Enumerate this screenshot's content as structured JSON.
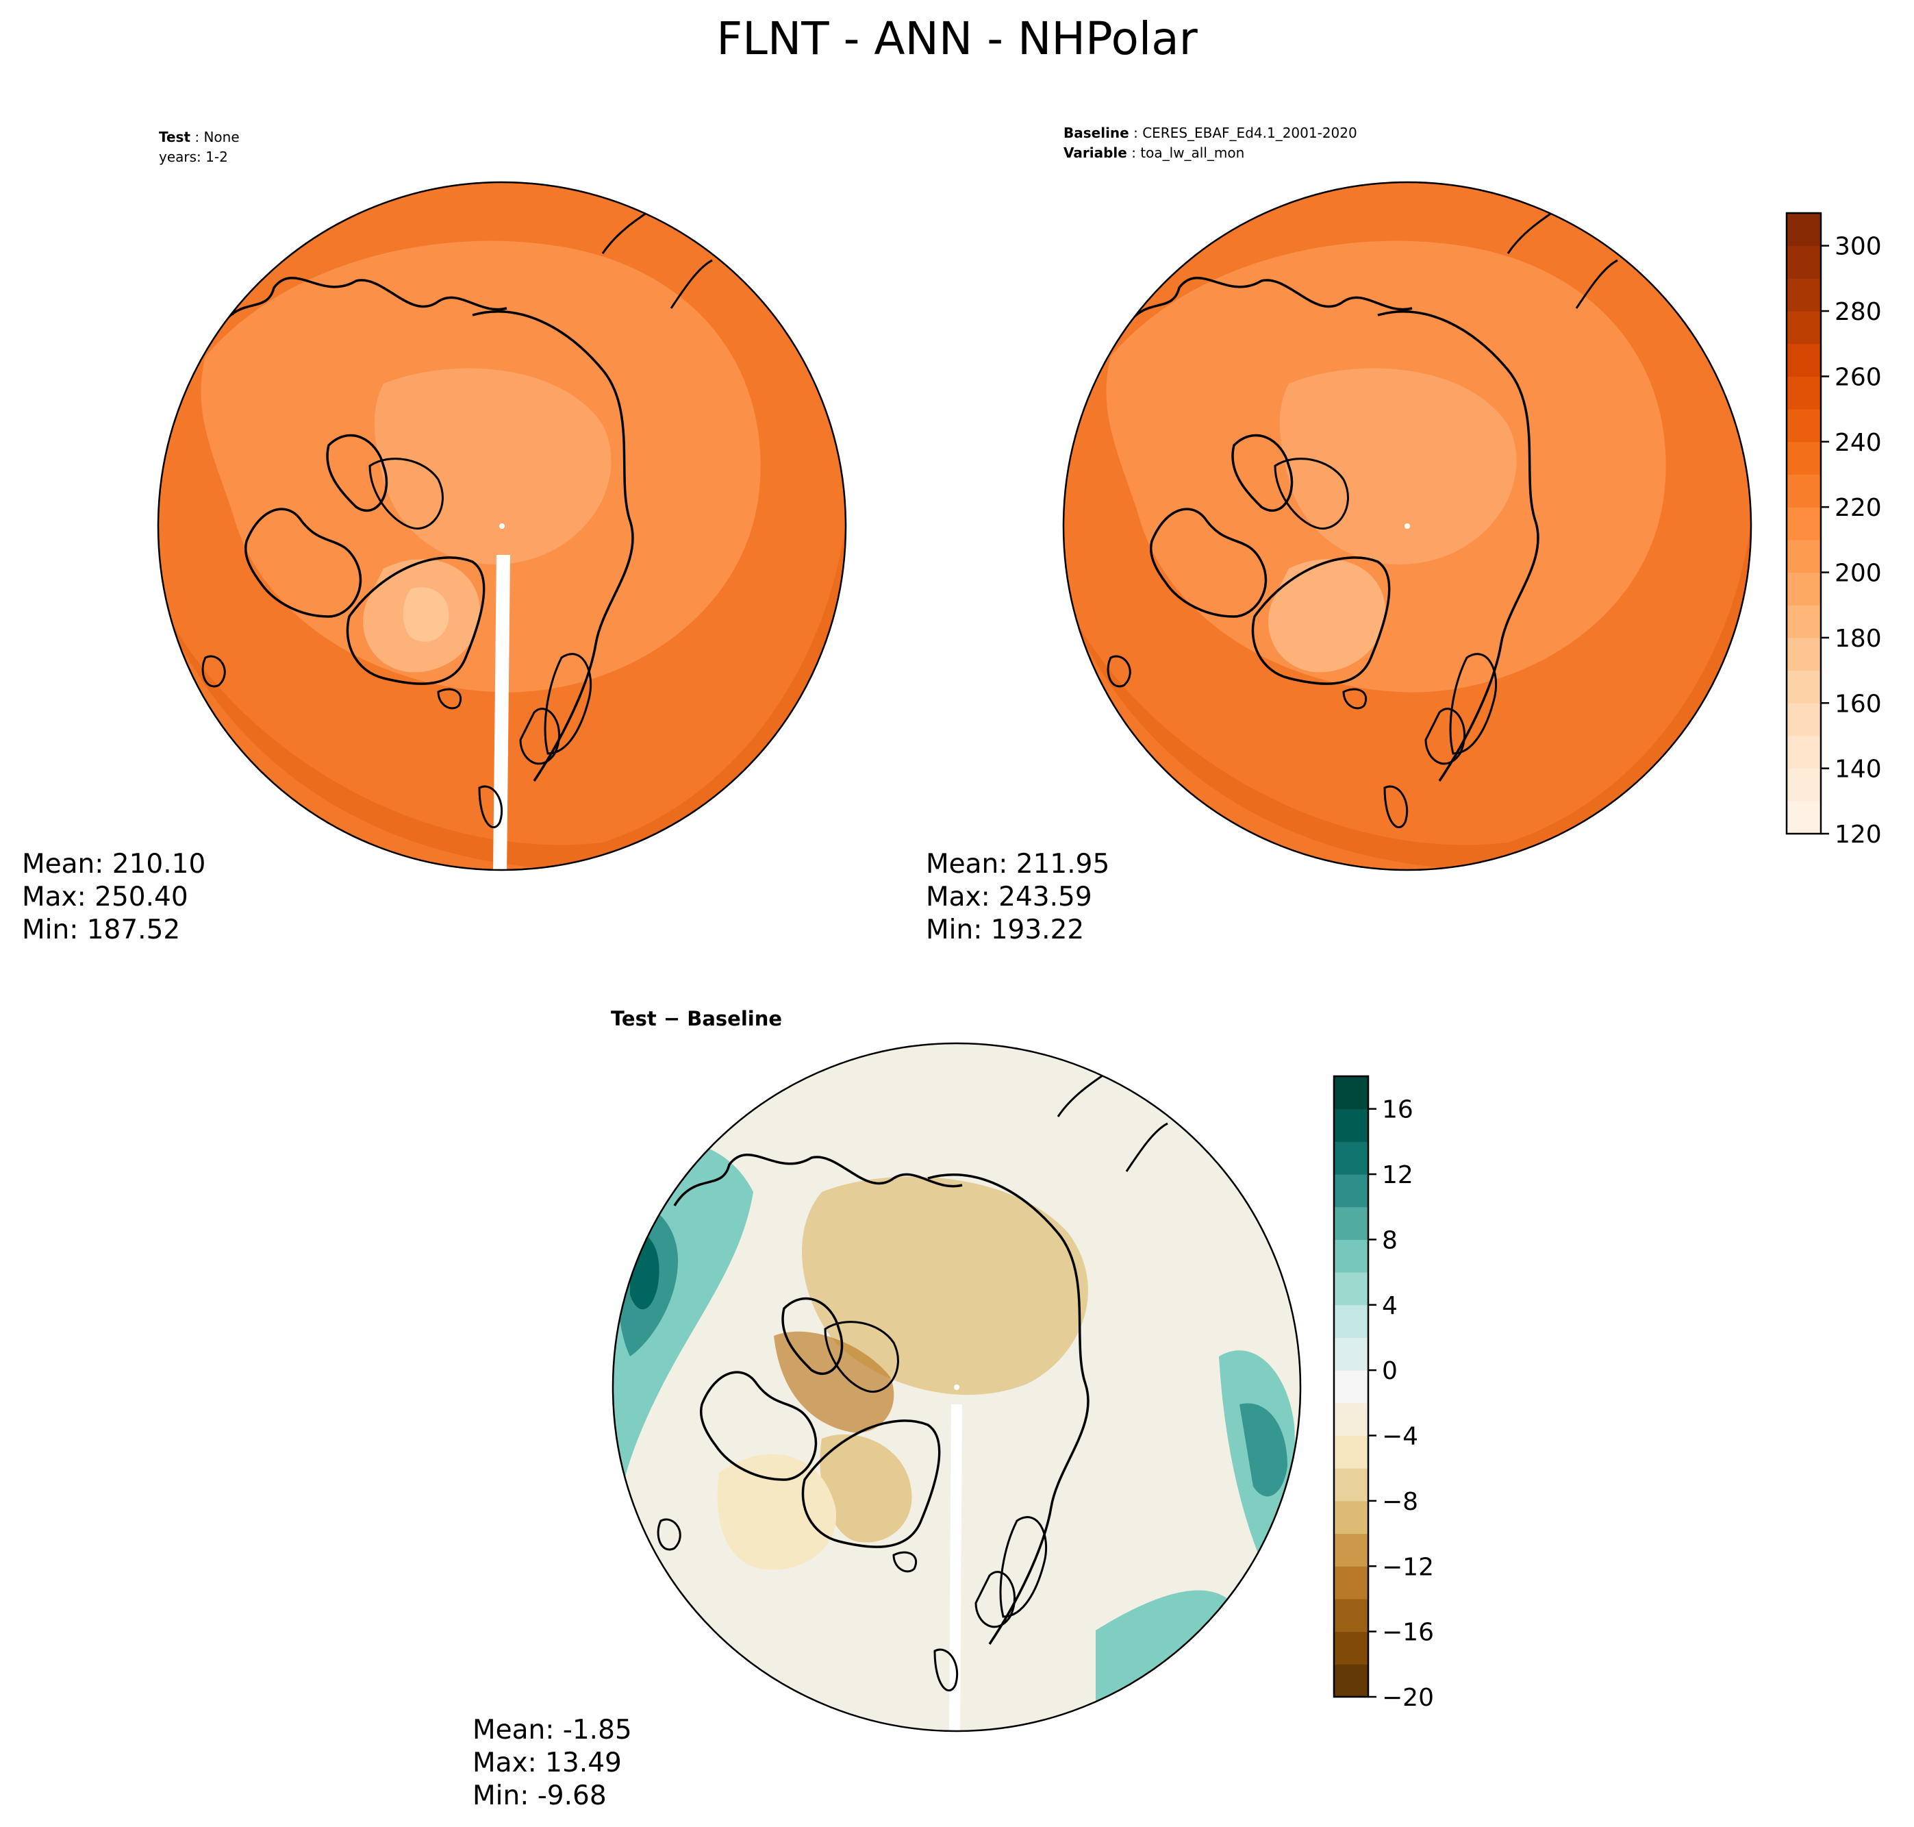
{
  "figure": {
    "title": "FLNT - ANN - NHPolar"
  },
  "panels": {
    "test": {
      "title_label": "Test",
      "title_value": "None",
      "subtitle": "years: 1-2",
      "stats": {
        "mean": "Mean: 210.10",
        "max": "Max: 250.40",
        "min": "Min: 187.52"
      }
    },
    "baseline": {
      "title_label": "Baseline",
      "title_value": "CERES_EBAF_Ed4.1_2001-2020",
      "variable_label": "Variable",
      "variable_value": "toa_lw_all_mon",
      "stats": {
        "mean": "Mean: 211.95",
        "max": "Max: 243.59",
        "min": "Min: 193.22"
      }
    },
    "diff": {
      "title": "Test − Baseline",
      "stats": {
        "mean": "Mean: -1.85",
        "max": "Max: 13.49",
        "min": "Min: -9.68"
      }
    }
  },
  "chart_data": [
    {
      "type": "heatmap",
      "name": "Test",
      "projection": "north polar stereographic",
      "colormap": "Oranges",
      "colorbar": {
        "range": [
          120,
          310
        ],
        "ticks": [
          120,
          140,
          160,
          180,
          200,
          220,
          240,
          260,
          280,
          300
        ],
        "labels": [
          "120",
          "140",
          "160",
          "180",
          "200",
          "220",
          "240",
          "260",
          "280",
          "300"
        ]
      },
      "mean": 210.1,
      "max": 250.4,
      "min": 187.52
    },
    {
      "type": "heatmap",
      "name": "Baseline",
      "projection": "north polar stereographic",
      "colormap": "Oranges",
      "colorbar": {
        "range": [
          120,
          310
        ],
        "ticks": [
          120,
          140,
          160,
          180,
          200,
          220,
          240,
          260,
          280,
          300
        ],
        "labels": [
          "120",
          "140",
          "160",
          "180",
          "200",
          "220",
          "240",
          "260",
          "280",
          "300"
        ]
      },
      "mean": 211.95,
      "max": 243.59,
      "min": 193.22
    },
    {
      "type": "heatmap",
      "name": "Test − Baseline",
      "projection": "north polar stereographic",
      "colormap": "BrBG",
      "colorbar": {
        "range": [
          -20,
          18
        ],
        "ticks": [
          -20,
          -16,
          -12,
          -8,
          -4,
          0,
          4,
          8,
          12,
          16
        ],
        "labels": [
          "−20",
          "−16",
          "−12",
          "−8",
          "−4",
          "0",
          "4",
          "8",
          "12",
          "16"
        ]
      },
      "mean": -1.85,
      "max": 13.49,
      "min": -9.68
    }
  ],
  "colors": {
    "oranges": [
      "#fff5eb",
      "#fee6ce",
      "#fdd0a2",
      "#fdae6b",
      "#fd8d3c",
      "#f16913",
      "#d94801",
      "#a63603",
      "#7f2704"
    ],
    "brbg": [
      "#543005",
      "#8c510a",
      "#bf812d",
      "#dfc27d",
      "#f6e8c3",
      "#f5f5f5",
      "#c7eae5",
      "#80cdc1",
      "#35978f",
      "#01665e",
      "#003c30"
    ]
  }
}
